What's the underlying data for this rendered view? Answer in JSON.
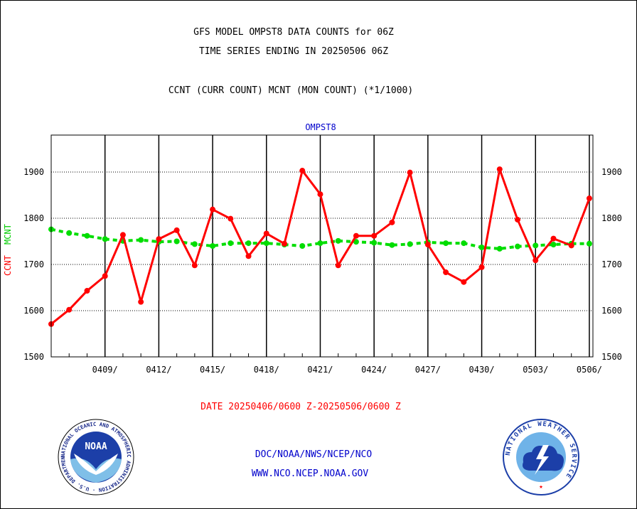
{
  "header": {
    "title_line1": "GFS MODEL OMPST8 DATA COUNTS for 06Z",
    "title_line2": "TIME SERIES ENDING IN 20250506 06Z",
    "subtitle": "CCNT (CURR COUNT) MCNT (MON COUNT) (*1/1000)"
  },
  "footer": {
    "date_range": "DATE 20250406/0600 Z-20250506/0600 Z",
    "link1": "DOC/NOAA/NWS/NCEP/NCO",
    "link2": "WWW.NCO.NCEP.NOAA.GOV"
  },
  "logos": {
    "noaa_text": "NOAA",
    "noaa_ring": "NATIONAL OCEANIC AND ATMOSPHERIC ADMINISTRATION · U.S. DEPARTMENT OF COMMERCE ·",
    "nws_ring": "NATIONAL WEATHER SERVICE"
  },
  "colors": {
    "ccnt": "#ff0000",
    "mcnt": "#00dd00",
    "label_blue": "#0000cc"
  },
  "chart_data": {
    "type": "line",
    "title": "OMPST8",
    "ylabel_ccnt": "CCNT",
    "ylabel_mcnt": "MCNT",
    "ylim": [
      1500,
      1980
    ],
    "yticks": [
      1500,
      1600,
      1700,
      1800,
      1900
    ],
    "xlim": [
      0,
      30.2
    ],
    "xticks": [
      {
        "x": 3,
        "label": "0409/"
      },
      {
        "x": 6,
        "label": "0412/"
      },
      {
        "x": 9,
        "label": "0415/"
      },
      {
        "x": 12,
        "label": "0418/"
      },
      {
        "x": 15,
        "label": "0421/"
      },
      {
        "x": 18,
        "label": "0424/"
      },
      {
        "x": 21,
        "label": "0427/"
      },
      {
        "x": 24,
        "label": "0430/"
      },
      {
        "x": 27,
        "label": "0503/"
      },
      {
        "x": 30,
        "label": "0506/"
      }
    ],
    "grid": true,
    "series": [
      {
        "name": "CCNT",
        "color": "#ff0000",
        "x": [
          0,
          1,
          2,
          3,
          4,
          5,
          6,
          7,
          8,
          9,
          10,
          11,
          12,
          13,
          14,
          15,
          16,
          17,
          18,
          19,
          20,
          21,
          22,
          23,
          24,
          25,
          26,
          27,
          28,
          29,
          30
        ],
        "values": [
          1571,
          1602,
          1643,
          1675,
          1764,
          1619,
          1755,
          1774,
          1698,
          1819,
          1799,
          1718,
          1767,
          1745,
          1903,
          1852,
          1698,
          1762,
          1762,
          1791,
          1899,
          1743,
          1683,
          1662,
          1694,
          1906,
          1797,
          1709,
          1756,
          1741,
          1843
        ]
      },
      {
        "name": "MCNT",
        "color": "#00dd00",
        "x": [
          0,
          1,
          2,
          3,
          4,
          5,
          6,
          7,
          8,
          9,
          10,
          11,
          12,
          13,
          14,
          15,
          16,
          17,
          18,
          19,
          20,
          21,
          22,
          23,
          24,
          25,
          26,
          27,
          28,
          29,
          30
        ],
        "values": [
          1776,
          1768,
          1762,
          1755,
          1751,
          1753,
          1749,
          1750,
          1744,
          1740,
          1746,
          1746,
          1746,
          1743,
          1740,
          1746,
          1751,
          1749,
          1747,
          1742,
          1744,
          1748,
          1746,
          1746,
          1737,
          1734,
          1739,
          1741,
          1743,
          1745,
          1745
        ]
      }
    ]
  }
}
